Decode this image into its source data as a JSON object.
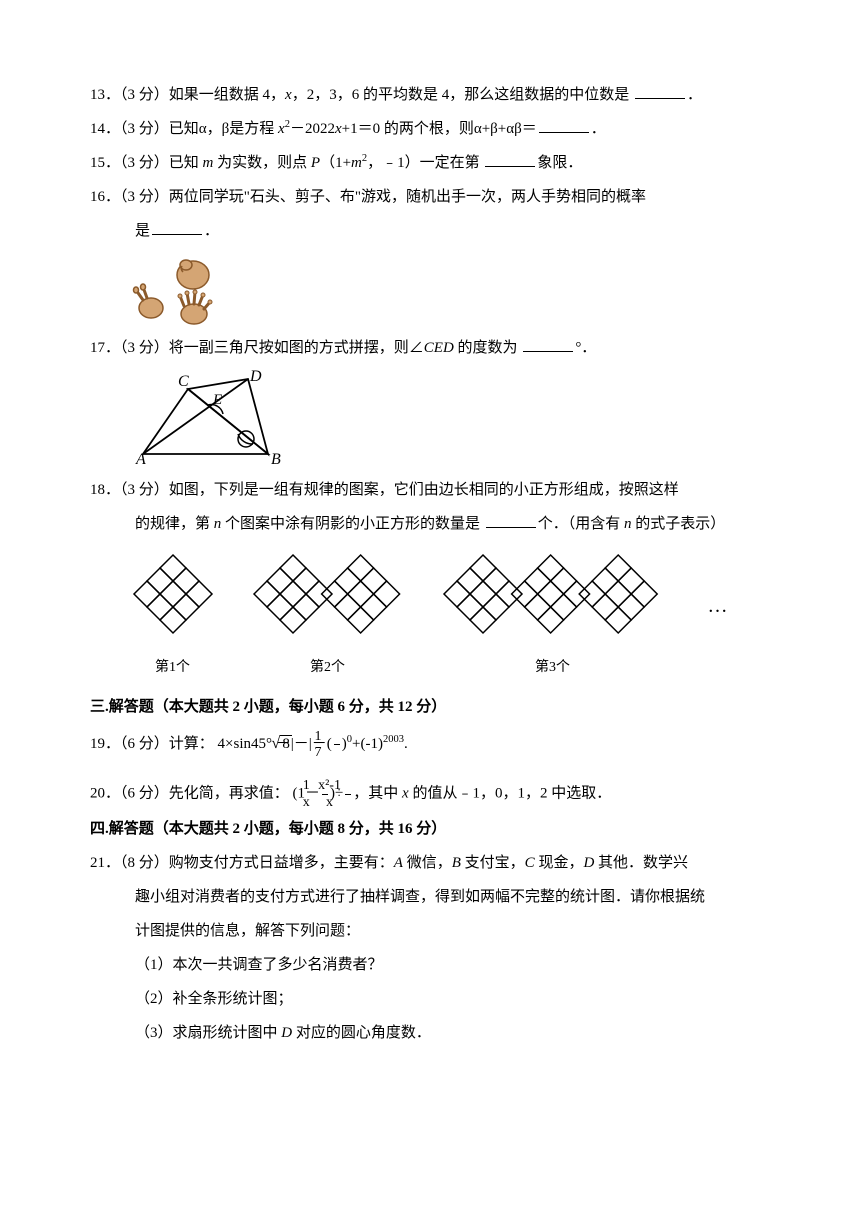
{
  "questions": {
    "q13": {
      "num": "13．",
      "points": "（3 分）",
      "text_a": "如果一组数据 4，",
      "var": "x",
      "text_b": "，2，3，6 的平均数是 4，那么这组数据的中位数是",
      "period": "．"
    },
    "q14": {
      "num": "14．",
      "points": "（3 分）",
      "text_a": "已知α，β是方程 ",
      "eq_var": "x",
      "eq_sup": "2",
      "eq_rest": "－2022",
      "eq_var2": "x",
      "eq_rest2": "+1＝0 的两个根，则α+β+αβ＝",
      "period": "．"
    },
    "q15": {
      "num": "15．",
      "points": "（3 分）",
      "text_a": "已知 ",
      "var_m": "m",
      "text_b": " 为实数，则点 ",
      "var_P": "P",
      "text_c": "（1+",
      "var_m2": "m",
      "sup": "2",
      "text_d": "，﹣1）一定在第",
      "text_e": "象限．"
    },
    "q16": {
      "num": "16．",
      "points": "（3 分）",
      "text_a": "两位同学玩\"石头、剪子、布\"游戏，随机出手一次，两人手势相同的概率",
      "text_b": "是",
      "period": "．"
    },
    "q17": {
      "num": "17．",
      "points": "（3 分）",
      "text_a": "将一副三角尺按如图的方式拼摆，则∠",
      "angle": "CED",
      "text_b": " 的度数为",
      "degree": "°．"
    },
    "q18": {
      "num": "18．",
      "points": "（3 分）",
      "text_a": "如图，下列是一组有规律的图案，它们由边长相同的小正方形组成，按照这样",
      "text_b": "的规律，第 ",
      "var_n": "n",
      "text_c": " 个图案中涂有阴影的小正方形的数量是",
      "text_d": "个．（用含有 ",
      "var_n2": "n",
      "text_e": " 的式子表示）",
      "labels": [
        "第1个",
        "第2个",
        "第3个"
      ]
    },
    "sec3": "三.解答题（本大题共 2 小题，每小题 6 分，共 12 分）",
    "q19": {
      "num": "19．",
      "points": "（6 分）",
      "text": "计算：",
      "expr_4": "4",
      "expr_times": "×",
      "expr_sin": "sin45°",
      "expr_minus": "－|－",
      "expr_8": "8",
      "expr_bar": "|－(",
      "frac_num": "1",
      "frac_den": "7",
      "expr_p0": ")",
      "sup0": "0",
      "expr_plus": "+(-1)",
      "sup2003": "2003",
      "period": "."
    },
    "q20": {
      "num": "20．",
      "points": "（6 分）",
      "text_a": "先化简，再求值：",
      "p1": "(1－",
      "f1_num": "1",
      "f1_den": "x",
      "p2": ")÷",
      "f2_num": "x²-1",
      "f2_den": "x",
      "text_b": "，其中 ",
      "var_x": "x",
      "text_c": " 的值从﹣1，0，1，2 中选取．"
    },
    "sec4": "四.解答题（本大题共 2 小题，每小题 8 分，共 16 分）",
    "q21": {
      "num": "21．",
      "points": "（8 分）",
      "text_a": "购物支付方式日益增多，主要有：",
      "A": "A",
      "text_a2": " 微信，",
      "B": "B",
      "text_a3": " 支付宝，",
      "C": "C",
      "text_a4": " 现金，",
      "D": "D",
      "text_a5": " 其他．数学兴",
      "text_b": "趣小组对消费者的支付方式进行了抽样调查，得到如两幅不完整的统计图．请你根据统",
      "text_c": "计图提供的信息，解答下列问题：",
      "sub1": "（1）本次一共调查了多少名消费者？",
      "sub2": "（2）补全条形统计图；",
      "sub3": "（3）求扇形统计图中 ",
      "sub3_D": "D",
      "sub3_b": " 对应的圆心角度数．"
    }
  },
  "colors": {
    "text": "#000000",
    "bg": "#ffffff",
    "hand1": "#d4a574",
    "hand2": "#c89060",
    "hand_outline": "#8b5a2b"
  }
}
